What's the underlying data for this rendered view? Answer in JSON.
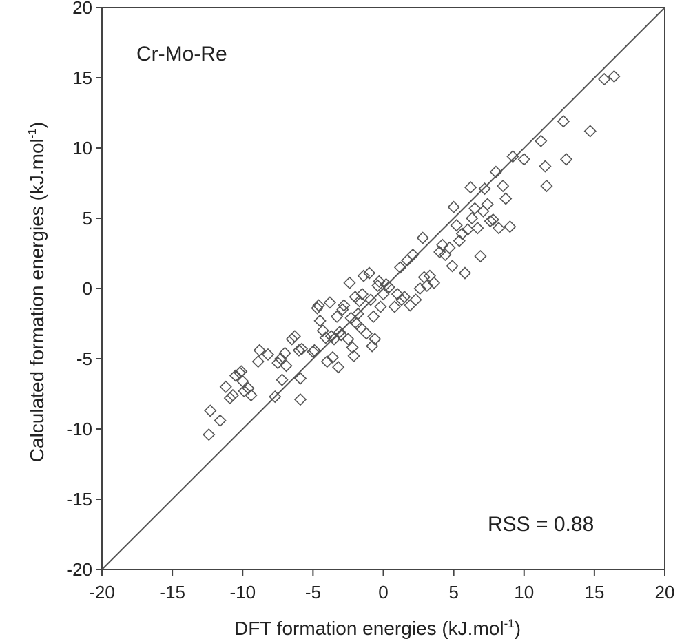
{
  "chart_data": {
    "type": "scatter",
    "title": "",
    "annotations": {
      "system": "Cr-Mo-Re",
      "rss": "RSS = 0.88"
    },
    "xlabel": {
      "main": "DFT formation energies (kJ.mol",
      "sup": "-1",
      "end": ")"
    },
    "ylabel": {
      "main": "Calculated formation energies (kJ.mol",
      "sup": "-1",
      "end": ")"
    },
    "xlim": [
      -20,
      20
    ],
    "ylim": [
      -20,
      20
    ],
    "xticks": [
      -20,
      -15,
      -10,
      -5,
      0,
      5,
      10,
      15,
      20
    ],
    "yticks": [
      -20,
      -15,
      -10,
      -5,
      0,
      5,
      10,
      15,
      20
    ],
    "xtick_labels": [
      "-20",
      "-15",
      "-10",
      "-5",
      "0",
      "5",
      "10",
      "15",
      "20"
    ],
    "ytick_labels": [
      "-20",
      "-15",
      "-10",
      "-5",
      "0",
      "5",
      "10",
      "15",
      "20"
    ],
    "grid": false,
    "reference_line": {
      "from": [
        -20,
        -20
      ],
      "to": [
        20,
        20
      ]
    },
    "marker": "diamond-open",
    "colors": {
      "marker": "#555555",
      "axis": "#444444",
      "line": "#555555"
    },
    "points": [
      [
        -12.4,
        -10.4
      ],
      [
        -12.3,
        -8.7
      ],
      [
        -11.6,
        -9.4
      ],
      [
        -11.2,
        -7.0
      ],
      [
        -10.9,
        -7.8
      ],
      [
        -10.7,
        -7.6
      ],
      [
        -10.5,
        -6.2
      ],
      [
        -10.2,
        -6.0
      ],
      [
        -10.0,
        -6.6
      ],
      [
        -9.9,
        -7.3
      ],
      [
        -9.6,
        -7.1
      ],
      [
        -9.4,
        -7.6
      ],
      [
        -10.1,
        -5.9
      ],
      [
        -8.8,
        -4.4
      ],
      [
        -8.9,
        -5.2
      ],
      [
        -8.2,
        -4.7
      ],
      [
        -7.7,
        -7.7
      ],
      [
        -7.5,
        -5.3
      ],
      [
        -7.3,
        -5.0
      ],
      [
        -7.2,
        -6.5
      ],
      [
        -7.0,
        -4.6
      ],
      [
        -6.9,
        -5.5
      ],
      [
        -6.5,
        -3.6
      ],
      [
        -6.3,
        -3.4
      ],
      [
        -6.0,
        -4.4
      ],
      [
        -5.9,
        -6.4
      ],
      [
        -5.9,
        -7.9
      ],
      [
        -5.8,
        -4.3
      ],
      [
        -5.0,
        -4.5
      ],
      [
        -4.9,
        -4.4
      ],
      [
        -4.7,
        -1.4
      ],
      [
        -4.6,
        -1.2
      ],
      [
        -4.5,
        -2.3
      ],
      [
        -4.3,
        -3.0
      ],
      [
        -4.1,
        -3.5
      ],
      [
        -4.0,
        -5.2
      ],
      [
        -3.8,
        -1.0
      ],
      [
        -3.7,
        -3.4
      ],
      [
        -3.6,
        -4.9
      ],
      [
        -3.5,
        -3.6
      ],
      [
        -3.3,
        -2.0
      ],
      [
        -3.2,
        -5.6
      ],
      [
        -3.1,
        -3.1
      ],
      [
        -3.0,
        -3.3
      ],
      [
        -2.9,
        -1.5
      ],
      [
        -2.8,
        -1.2
      ],
      [
        -2.5,
        -3.6
      ],
      [
        -2.4,
        0.4
      ],
      [
        -2.3,
        -2.1
      ],
      [
        -2.2,
        -4.2
      ],
      [
        -2.1,
        -4.8
      ],
      [
        -2.0,
        -0.6
      ],
      [
        -1.9,
        -2.5
      ],
      [
        -1.8,
        -1.8
      ],
      [
        -1.7,
        -0.9
      ],
      [
        -1.6,
        -2.8
      ],
      [
        -1.5,
        -0.4
      ],
      [
        -1.4,
        0.9
      ],
      [
        -1.2,
        -3.2
      ],
      [
        -1.0,
        1.1
      ],
      [
        -0.9,
        -0.8
      ],
      [
        -0.8,
        -4.1
      ],
      [
        -0.7,
        -2.0
      ],
      [
        -0.6,
        -3.6
      ],
      [
        -0.4,
        0.2
      ],
      [
        -0.3,
        0.5
      ],
      [
        -0.2,
        -1.3
      ],
      [
        0.0,
        -0.4
      ],
      [
        0.2,
        0.3
      ],
      [
        0.4,
        0.1
      ],
      [
        0.8,
        -1.3
      ],
      [
        1.0,
        -0.4
      ],
      [
        1.2,
        1.5
      ],
      [
        1.3,
        -0.8
      ],
      [
        1.5,
        -0.6
      ],
      [
        1.7,
        2.0
      ],
      [
        1.9,
        -1.2
      ],
      [
        2.1,
        2.4
      ],
      [
        2.3,
        -0.8
      ],
      [
        2.6,
        0.0
      ],
      [
        2.8,
        3.6
      ],
      [
        2.9,
        0.8
      ],
      [
        3.1,
        0.2
      ],
      [
        3.3,
        0.9
      ],
      [
        3.6,
        0.4
      ],
      [
        4.0,
        2.6
      ],
      [
        4.2,
        3.1
      ],
      [
        4.4,
        2.4
      ],
      [
        4.7,
        2.9
      ],
      [
        4.9,
        1.6
      ],
      [
        5.0,
        5.8
      ],
      [
        5.2,
        4.5
      ],
      [
        5.4,
        3.4
      ],
      [
        5.6,
        3.9
      ],
      [
        5.8,
        1.1
      ],
      [
        6.0,
        4.2
      ],
      [
        6.2,
        7.2
      ],
      [
        6.3,
        5.0
      ],
      [
        6.5,
        5.7
      ],
      [
        6.7,
        4.3
      ],
      [
        6.9,
        2.3
      ],
      [
        7.1,
        5.5
      ],
      [
        7.2,
        7.1
      ],
      [
        7.4,
        6.0
      ],
      [
        7.6,
        4.8
      ],
      [
        7.8,
        4.9
      ],
      [
        8.0,
        8.3
      ],
      [
        8.2,
        4.3
      ],
      [
        8.5,
        7.3
      ],
      [
        8.7,
        6.4
      ],
      [
        9.0,
        4.4
      ],
      [
        9.2,
        9.4
      ],
      [
        10.0,
        9.2
      ],
      [
        11.2,
        10.5
      ],
      [
        11.5,
        8.7
      ],
      [
        11.6,
        7.3
      ],
      [
        12.8,
        11.9
      ],
      [
        13.0,
        9.2
      ],
      [
        14.7,
        11.2
      ],
      [
        15.7,
        14.9
      ],
      [
        16.4,
        15.1
      ]
    ]
  }
}
